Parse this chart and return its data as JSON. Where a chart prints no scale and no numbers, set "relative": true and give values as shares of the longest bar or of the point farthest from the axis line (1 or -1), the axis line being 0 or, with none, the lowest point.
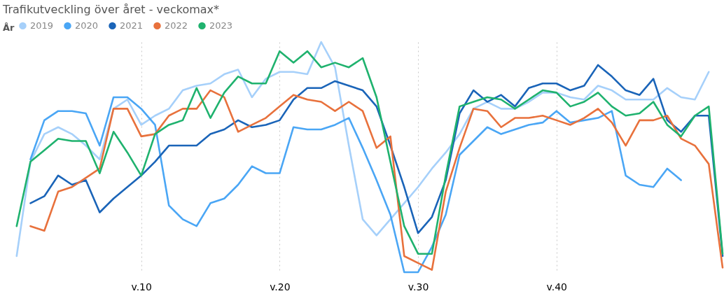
{
  "chart_data": {
    "type": "line",
    "title": "Trafikutveckling över året - veckomax*",
    "legend_title": "År",
    "legend": "top left",
    "relative": true,
    "grid": "x",
    "marker": "none",
    "line_style": "solid",
    "categories": [
      null,
      null,
      null,
      null,
      null,
      null,
      null,
      null,
      null,
      "v.10",
      null,
      null,
      null,
      null,
      null,
      null,
      null,
      null,
      null,
      "v.20",
      null,
      null,
      null,
      null,
      null,
      null,
      null,
      null,
      null,
      "v.30",
      null,
      null,
      null,
      null,
      null,
      null,
      null,
      null,
      null,
      "v.40",
      null,
      null,
      null,
      null,
      null,
      null,
      null,
      null,
      null,
      null,
      null,
      null
    ],
    "series": [
      {
        "name": "2019",
        "color": "#a6d0fa",
        "values": [
          0.07,
          0.48,
          0.6,
          0.63,
          0.6,
          0.55,
          0.49,
          0.71,
          0.75,
          0.64,
          0.68,
          0.71,
          0.79,
          0.81,
          0.82,
          0.86,
          0.88,
          0.76,
          0.84,
          0.87,
          0.87,
          0.86,
          1.0,
          0.89,
          0.55,
          0.23,
          0.16,
          0.23,
          0.3,
          0.37,
          0.45,
          0.52,
          0.6,
          0.71,
          0.74,
          0.71,
          0.71,
          0.74,
          0.78,
          0.78,
          0.76,
          0.75,
          0.81,
          0.79,
          0.75,
          0.75,
          0.75,
          0.8,
          0.76,
          0.75,
          0.87,
          null
        ]
      },
      {
        "name": "2020",
        "color": "#4aa6f5",
        "values": [
          null,
          0.49,
          0.66,
          0.7,
          0.7,
          0.69,
          0.55,
          0.76,
          0.76,
          0.71,
          0.64,
          0.29,
          0.23,
          0.2,
          0.3,
          0.32,
          0.38,
          0.46,
          0.43,
          0.43,
          0.63,
          0.62,
          0.62,
          0.64,
          0.67,
          0.54,
          0.4,
          0.25,
          0.0,
          0.0,
          0.11,
          0.25,
          0.51,
          0.57,
          0.63,
          0.6,
          0.62,
          0.64,
          0.65,
          0.7,
          0.65,
          0.66,
          0.67,
          0.7,
          0.42,
          0.38,
          0.37,
          0.45,
          0.4,
          null,
          null,
          null
        ]
      },
      {
        "name": "2021",
        "color": "#1a64b8",
        "values": [
          null,
          0.3,
          0.33,
          0.42,
          0.38,
          0.4,
          0.26,
          0.32,
          0.37,
          0.42,
          0.48,
          0.55,
          0.55,
          0.55,
          0.6,
          0.62,
          0.66,
          0.63,
          0.64,
          0.66,
          0.75,
          0.8,
          0.8,
          0.83,
          0.81,
          0.79,
          0.72,
          0.55,
          0.37,
          0.17,
          0.24,
          0.4,
          0.69,
          0.79,
          0.74,
          0.77,
          0.72,
          0.8,
          0.82,
          0.82,
          0.79,
          0.81,
          0.9,
          0.85,
          0.79,
          0.77,
          0.84,
          0.66,
          0.61,
          0.68,
          0.68,
          0.07
        ]
      },
      {
        "name": "2022",
        "color": "#e8713c",
        "values": [
          null,
          0.2,
          0.18,
          0.35,
          0.37,
          0.41,
          0.45,
          0.71,
          0.71,
          0.59,
          0.6,
          0.68,
          0.71,
          0.71,
          0.79,
          0.76,
          0.61,
          0.64,
          0.67,
          0.72,
          0.77,
          0.75,
          0.74,
          0.7,
          0.74,
          0.7,
          0.54,
          0.59,
          0.07,
          0.04,
          0.01,
          0.35,
          0.54,
          0.71,
          0.7,
          0.63,
          0.67,
          0.67,
          0.68,
          0.66,
          0.64,
          0.67,
          0.71,
          0.65,
          0.55,
          0.66,
          0.66,
          0.68,
          0.58,
          0.55,
          0.47,
          0.02
        ]
      },
      {
        "name": "2023",
        "color": "#1fb26e",
        "values": [
          0.2,
          0.48,
          0.53,
          0.58,
          0.57,
          0.57,
          0.43,
          0.61,
          0.52,
          0.42,
          0.6,
          0.64,
          0.66,
          0.8,
          0.67,
          0.78,
          0.85,
          0.82,
          0.82,
          0.96,
          0.91,
          0.96,
          0.89,
          0.91,
          0.89,
          0.93,
          0.76,
          0.48,
          0.2,
          0.08,
          0.08,
          0.42,
          0.72,
          0.74,
          0.76,
          0.75,
          0.71,
          0.75,
          0.79,
          0.78,
          0.72,
          0.74,
          0.78,
          0.72,
          0.68,
          0.69,
          0.74,
          0.64,
          0.59,
          0.68,
          0.72,
          0.08
        ]
      }
    ]
  }
}
